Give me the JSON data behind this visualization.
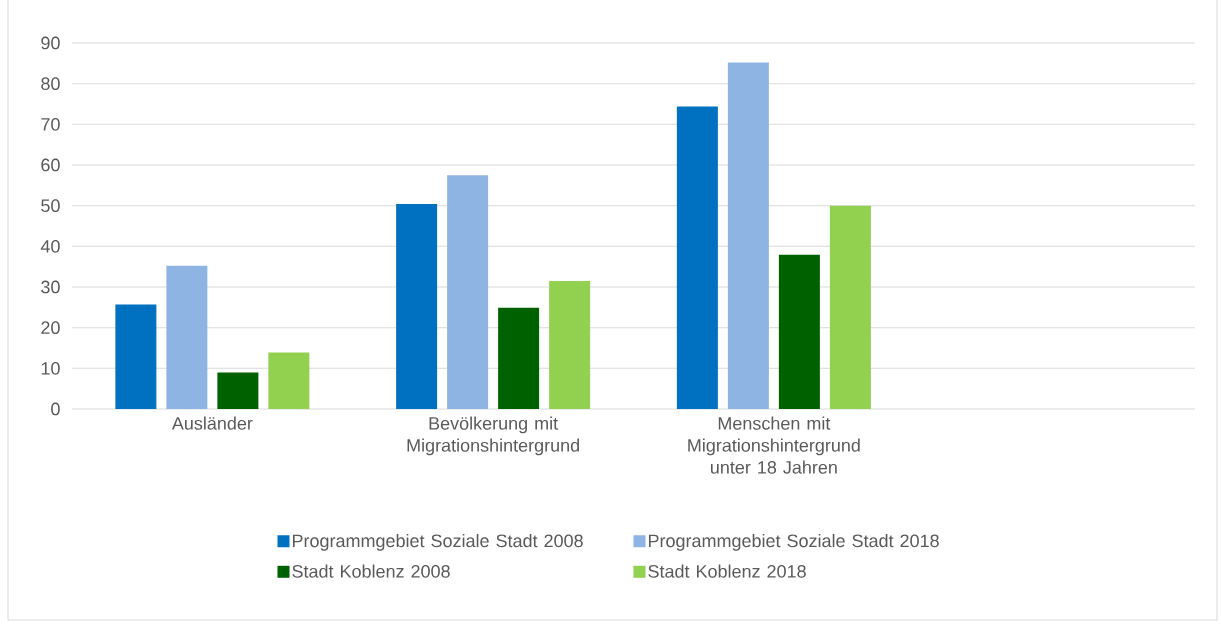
{
  "chart_data": {
    "type": "bar",
    "categories": [
      "Ausländer",
      "Bevölkerung mit Migrationshintergrund",
      "Menschen mit Migrationshintergrund unter 18 Jahren",
      null
    ],
    "series": [
      {
        "name": "Programmgebiet Soziale Stadt 2008",
        "color": "#0070c0",
        "values": [
          25.7,
          50.4,
          74.4,
          null
        ]
      },
      {
        "name": "Programmgebiet Soziale Stadt 2018",
        "color": "#8eb4e3",
        "values": [
          35.2,
          57.5,
          85.2,
          null
        ]
      },
      {
        "name": "Stadt Koblenz 2008",
        "color": "#006100",
        "values": [
          9.0,
          24.9,
          37.9,
          null
        ]
      },
      {
        "name": "Stadt Koblenz 2018",
        "color": "#92d050",
        "values": [
          13.9,
          31.5,
          50.0,
          null
        ]
      }
    ],
    "ylim": [
      0,
      90
    ],
    "yticks": [
      0,
      10,
      20,
      30,
      40,
      50,
      60,
      70,
      80,
      90
    ],
    "grid": "y",
    "legend": "bottom"
  }
}
